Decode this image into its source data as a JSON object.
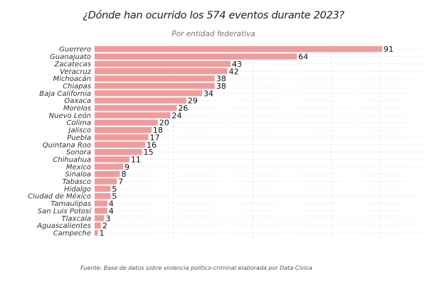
{
  "chart_data": {
    "type": "bar",
    "orientation": "horizontal",
    "title": "¿Dónde han ocurrido los 574 eventos durante 2023?",
    "subtitle": "Por entidad federativa",
    "source": "Fuente: Base de datos sobre violencia político-criminal elaborada por Data Cívica",
    "xlim": [
      0,
      95
    ],
    "grid": true,
    "bar_color": "#F09C9C",
    "categories": [
      "Guerrero",
      "Guanajuato",
      "Zacatecas",
      "Veracruz",
      "Michoacán",
      "Chiapas",
      "Baja California",
      "Oaxaca",
      "Morelos",
      "Nuevo León",
      "Colima",
      "Jalisco",
      "Puebla",
      "Quintana Roo",
      "Sonora",
      "Chihuahua",
      "Mexico",
      "Sinaloa",
      "Tabasco",
      "Hidalgo",
      "Ciudad de México",
      "Tamaulipas",
      "San Luis Potosí",
      "Tlaxcala",
      "Aguascalientes",
      "Campeche"
    ],
    "values": [
      91,
      64,
      43,
      42,
      38,
      38,
      34,
      29,
      26,
      24,
      20,
      18,
      17,
      16,
      15,
      11,
      9,
      8,
      7,
      5,
      5,
      4,
      4,
      3,
      2,
      1
    ]
  }
}
